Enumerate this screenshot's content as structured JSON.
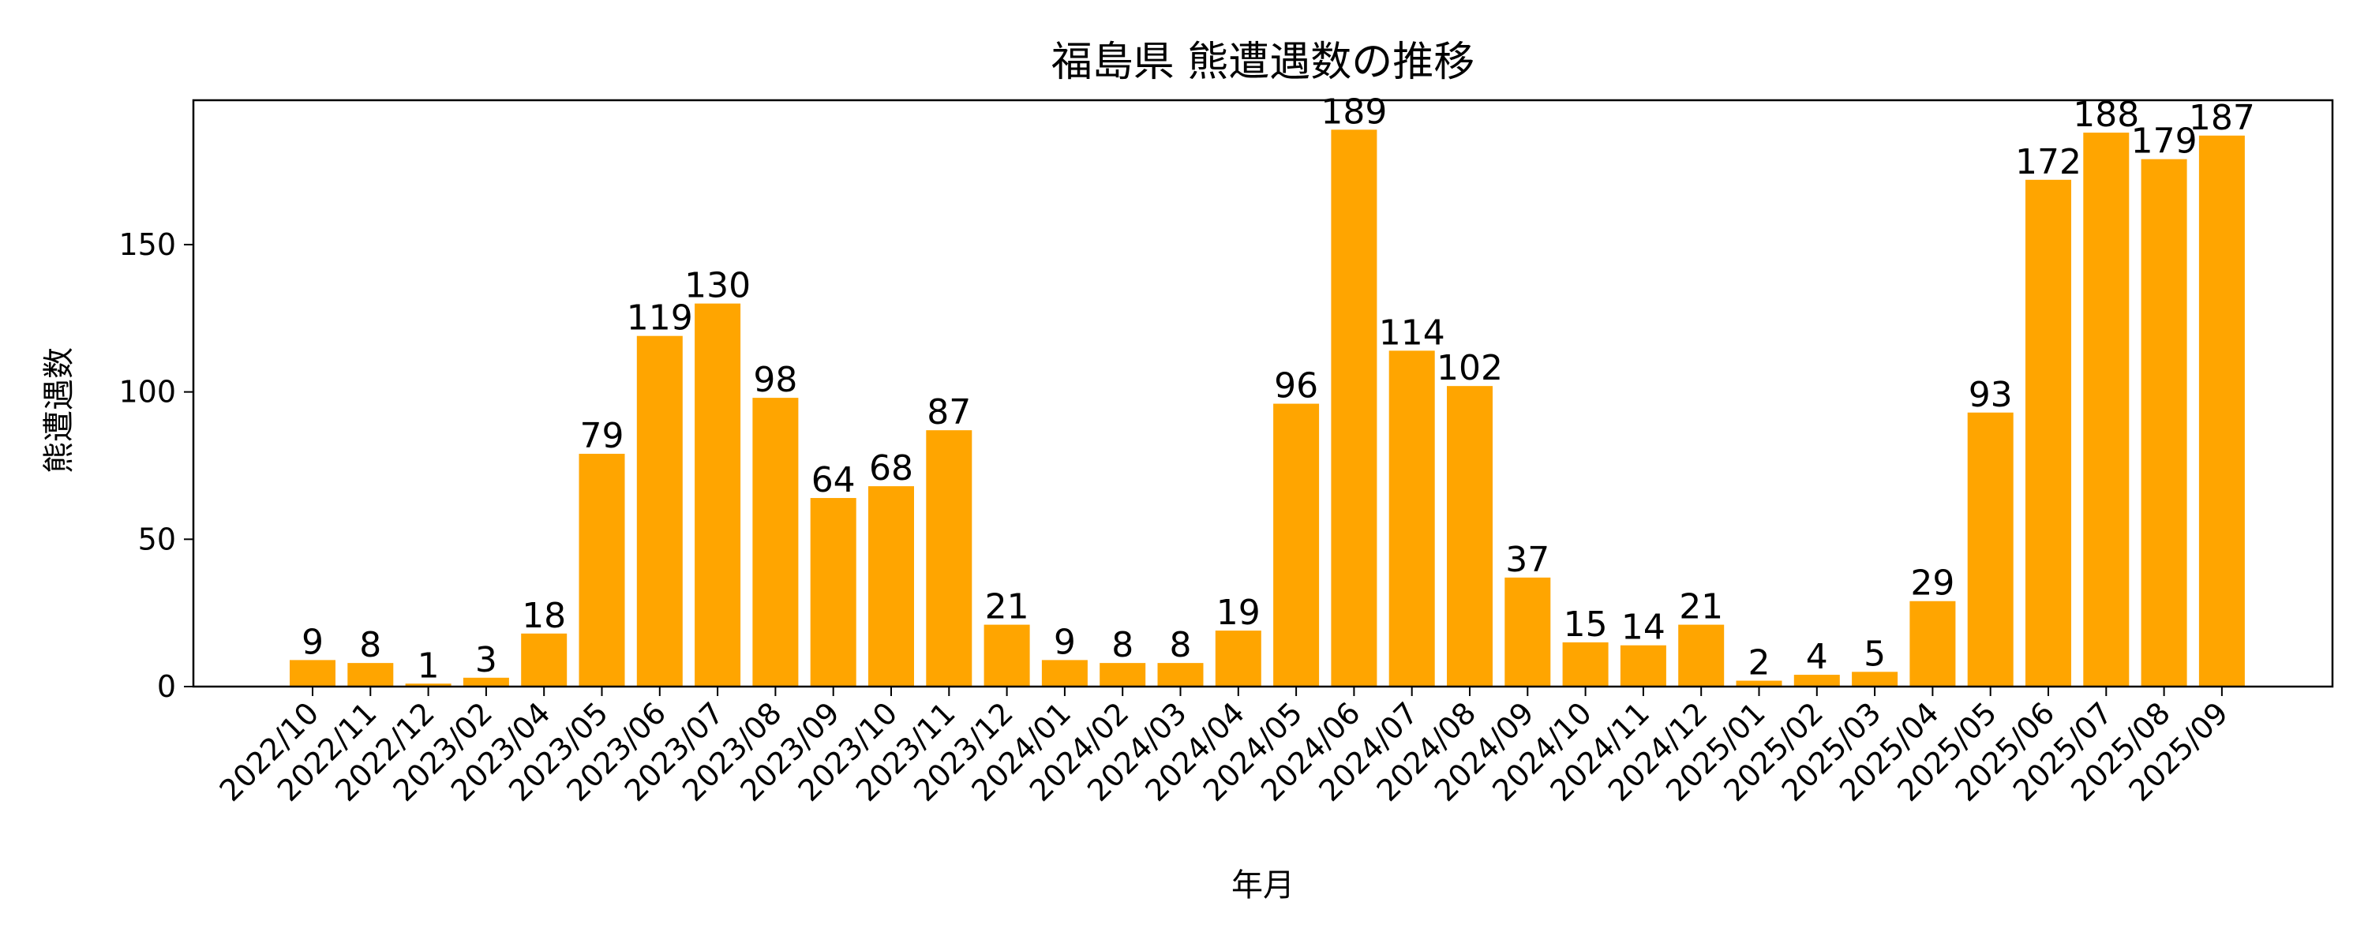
{
  "chart_data": {
    "type": "bar",
    "title": "福島県 熊遭遇数の推移",
    "xlabel": "年月",
    "ylabel": "熊遭遇数",
    "categories": [
      "2022/10",
      "2022/11",
      "2022/12",
      "2023/02",
      "2023/04",
      "2023/05",
      "2023/06",
      "2023/07",
      "2023/08",
      "2023/09",
      "2023/10",
      "2023/11",
      "2023/12",
      "2024/01",
      "2024/02",
      "2024/03",
      "2024/04",
      "2024/05",
      "2024/06",
      "2024/07",
      "2024/08",
      "2024/09",
      "2024/10",
      "2024/11",
      "2024/12",
      "2025/01",
      "2025/02",
      "2025/03",
      "2025/04",
      "2025/05",
      "2025/06",
      "2025/07",
      "2025/08",
      "2025/09"
    ],
    "values": [
      9,
      8,
      1,
      3,
      18,
      79,
      119,
      130,
      98,
      64,
      68,
      87,
      21,
      9,
      8,
      8,
      19,
      96,
      189,
      114,
      102,
      37,
      15,
      14,
      21,
      2,
      4,
      5,
      29,
      93,
      172,
      188,
      179,
      187
    ],
    "ylim": [
      0,
      199
    ],
    "yticks": [
      0,
      50,
      100,
      150
    ],
    "grid": false,
    "bar_color": "#ffa500"
  }
}
